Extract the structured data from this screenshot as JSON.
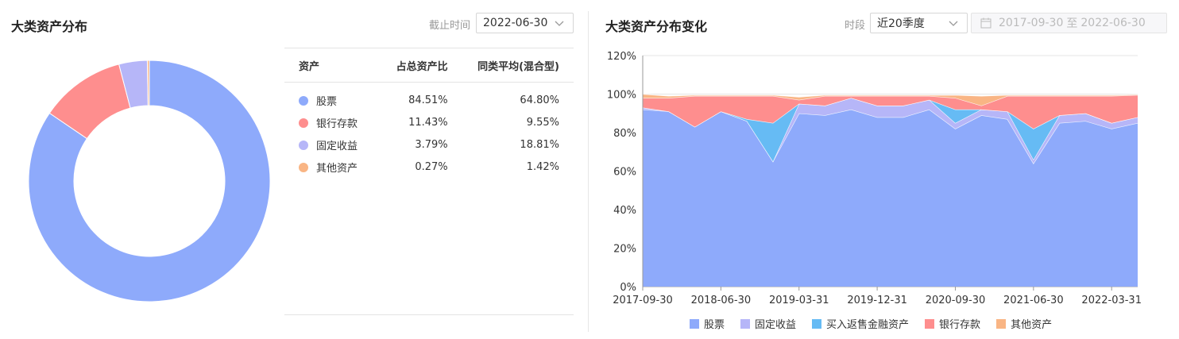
{
  "left_panel": {
    "title": "大类资产分布",
    "date_label": "截止时间",
    "date_value": "2022-06-30"
  },
  "right_panel": {
    "title": "大类资产分布变化",
    "period_label": "时段",
    "period_value": "近20季度",
    "range_start": "2017-09-30",
    "range_sep": "至",
    "range_end": "2022-06-30"
  },
  "table": {
    "headers": [
      "资产",
      "占总资产比",
      "同类平均(混合型)"
    ],
    "rows": [
      {
        "name": "股票",
        "ratio": "84.51%",
        "avg": "64.80%",
        "color": "#8eaafb"
      },
      {
        "name": "银行存款",
        "ratio": "11.43%",
        "avg": "9.55%",
        "color": "#fe8e8e"
      },
      {
        "name": "固定收益",
        "ratio": "3.79%",
        "avg": "18.81%",
        "color": "#b6b6f8"
      },
      {
        "name": "其他资产",
        "ratio": "0.27%",
        "avg": "1.42%",
        "color": "#f9b584"
      }
    ]
  },
  "chart_data": [
    {
      "type": "pie",
      "donut": true,
      "labels": [
        "股票",
        "银行存款",
        "固定收益",
        "其他资产"
      ],
      "values": [
        84.51,
        11.43,
        3.79,
        0.27
      ],
      "colors": [
        "#8eaafb",
        "#fe8e8e",
        "#b6b6f8",
        "#f9b584"
      ]
    },
    {
      "type": "area",
      "stacked": true,
      "x": [
        "2017-09-30",
        "2017-12-31",
        "2018-03-31",
        "2018-06-30",
        "2018-09-30",
        "2018-12-31",
        "2019-03-31",
        "2019-06-30",
        "2019-09-30",
        "2019-12-31",
        "2020-03-31",
        "2020-06-30",
        "2020-09-30",
        "2020-12-31",
        "2021-03-31",
        "2021-06-30",
        "2021-09-30",
        "2021-12-31",
        "2022-03-31",
        "2022-06-30"
      ],
      "xticks": [
        "2017-09-30",
        "2018-06-30",
        "2019-03-31",
        "2019-12-31",
        "2020-09-30",
        "2021-06-30",
        "2022-03-31"
      ],
      "yticks": [
        "0%",
        "20%",
        "40%",
        "60%",
        "80%",
        "100%",
        "120%"
      ],
      "ylim": [
        0,
        120
      ],
      "grid": true,
      "legend_position": "bottom",
      "series": [
        {
          "name": "股票",
          "color": "#8eaafb",
          "values": [
            92,
            91,
            83,
            91,
            86,
            65,
            90,
            89,
            92,
            88,
            88,
            92,
            82,
            89,
            87,
            64,
            85,
            86,
            82,
            85
          ]
        },
        {
          "name": "固定收益",
          "color": "#b6b6f8",
          "values": [
            1,
            0,
            0,
            0,
            0,
            0,
            5,
            5,
            6,
            6,
            6,
            5,
            3,
            3,
            4,
            2,
            4,
            4,
            3,
            3
          ]
        },
        {
          "name": "买入返售金融资产",
          "color": "#66bbf4",
          "values": [
            0,
            0,
            0,
            0,
            1,
            20,
            0,
            0,
            0,
            0,
            0,
            0,
            7,
            0,
            0,
            16,
            0,
            0,
            0,
            0
          ]
        },
        {
          "name": "银行存款",
          "color": "#fe8e8e",
          "values": [
            5,
            7,
            16,
            8,
            12,
            14,
            2,
            5,
            1,
            5,
            5,
            2,
            6,
            2,
            8,
            17,
            10,
            9,
            14,
            11.5
          ]
        },
        {
          "name": "其他资产",
          "color": "#f9b584",
          "values": [
            2,
            1,
            0.5,
            0.5,
            0.5,
            0.5,
            1.5,
            0.5,
            0.5,
            0.5,
            0.5,
            0.5,
            1.5,
            5,
            0.5,
            0.5,
            0.5,
            0.5,
            0.5,
            0.3
          ]
        }
      ]
    }
  ]
}
